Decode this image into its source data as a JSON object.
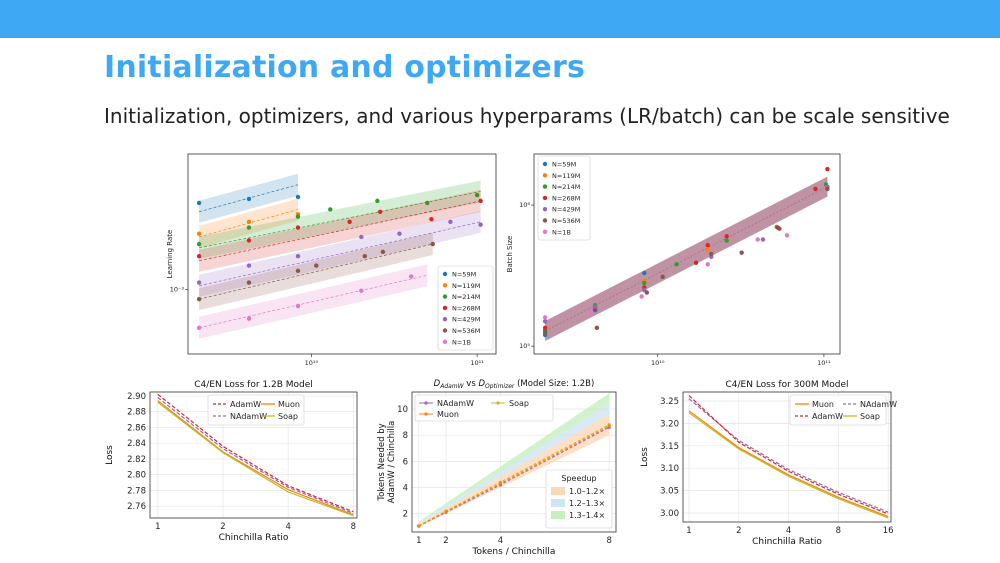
{
  "slide": {
    "title": "Initialization and optimizers",
    "subtitle": "Initialization, optimizers, and various hyperparams (LR/batch) can be scale sensitive",
    "bar_color": "#3ea8f5"
  },
  "chart_data": [
    {
      "type": "scatter",
      "id": "lr",
      "ylabel": "Learning Rate",
      "xscale": "log",
      "yscale": "log",
      "xticks": [
        {
          "v": 10000000000,
          "label": "10¹⁰"
        },
        {
          "v": 100000000000,
          "label": "10¹¹"
        }
      ],
      "yticks": [
        {
          "v": 0.001,
          "label": "10⁻³"
        }
      ],
      "xlim": [
        1800000000,
        130000000000
      ],
      "ylim": [
        0.0004,
        0.0068
      ],
      "legend_placement": "lower-right",
      "series": [
        {
          "name": "N=59M",
          "color": "#1f77b4",
          "x": [
            2100000000.0,
            4200000000.0,
            8300000000.0
          ],
          "y": [
            0.0034,
            0.0036,
            0.0037
          ],
          "fit": [
            [
              2100000000.0,
              0.003
            ],
            [
              8300000000.0,
              0.0044
            ]
          ]
        },
        {
          "name": "N=119M",
          "color": "#ff7f0e",
          "x": [
            2100000000.0,
            4200000000.0,
            8300000000.0
          ],
          "y": [
            0.0022,
            0.0026,
            0.0029
          ],
          "fit": [
            [
              2100000000.0,
              0.0021
            ],
            [
              8300000000.0,
              0.0031
            ]
          ]
        },
        {
          "name": "N=214M",
          "color": "#2ca02c",
          "x": [
            2100000000.0,
            4200000000.0,
            8300000000.0,
            13000000000.0,
            25000000000.0,
            50000000000.0,
            100000000000.0
          ],
          "y": [
            0.0019,
            0.0024,
            0.0028,
            0.0031,
            0.0035,
            0.0034,
            0.0038
          ],
          "fit": [
            [
              2100000000.0,
              0.0018
            ],
            [
              105000000000.0,
              0.004
            ]
          ]
        },
        {
          "name": "N=268M",
          "color": "#d62728",
          "x": [
            2100000000.0,
            4200000000.0,
            8300000000.0,
            17000000000.0,
            26000000000.0,
            53000000000.0,
            105000000000.0
          ],
          "y": [
            0.0016,
            0.002,
            0.0024,
            0.0026,
            0.003,
            0.0027,
            0.0035
          ],
          "fit": [
            [
              2100000000.0,
              0.0015
            ],
            [
              105000000000.0,
              0.0035
            ]
          ]
        },
        {
          "name": "N=429M",
          "color": "#9467bd",
          "x": [
            2100000000.0,
            4200000000.0,
            8300000000.0,
            20000000000.0,
            34000000000.0,
            69000000000.0,
            105000000000.0
          ],
          "y": [
            0.0011,
            0.0014,
            0.0016,
            0.0021,
            0.0022,
            0.0026,
            0.0025
          ],
          "fit": [
            [
              2100000000.0,
              0.00105
            ],
            [
              105000000000.0,
              0.0026
            ]
          ]
        },
        {
          "name": "N=536M",
          "color": "#8c564b",
          "x": [
            2100000000.0,
            4200000000.0,
            8300000000.0,
            10700000000.0,
            21000000000.0,
            27000000000.0,
            54000000000.0
          ],
          "y": [
            0.00087,
            0.0011,
            0.0013,
            0.0014,
            0.0016,
            0.0017,
            0.0019
          ],
          "fit": [
            [
              2100000000.0,
              0.00087
            ],
            [
              54000000000.0,
              0.0019
            ]
          ]
        },
        {
          "name": "N=1B",
          "color": "#e377c2",
          "x": [
            2100000000.0,
            4200000000.0,
            8300000000.0,
            20000000000.0,
            40000000000.0
          ],
          "y": [
            0.00058,
            0.00066,
            0.00079,
            0.00098,
            0.0012
          ],
          "fit": [
            [
              2100000000.0,
              0.00058
            ],
            [
              50000000000.0,
              0.00122
            ]
          ]
        }
      ]
    },
    {
      "type": "scatter",
      "id": "batch",
      "ylabel": "Batch Size",
      "xscale": "log",
      "yscale": "log",
      "xticks": [
        {
          "v": 10000000000,
          "label": "10¹⁰"
        },
        {
          "v": 100000000000,
          "label": "10¹¹"
        }
      ],
      "yticks": [
        {
          "v": 100000,
          "label": "10⁵"
        },
        {
          "v": 1000000,
          "label": "10⁶"
        }
      ],
      "xlim": [
        1800000000,
        125000000000
      ],
      "ylim": [
        88000,
        2300000
      ],
      "legend_placement": "upper-left",
      "series": [
        {
          "name": "N=59M",
          "color": "#1f77b4",
          "x": [
            2100000000.0,
            4200000000.0,
            8300000000.0
          ],
          "y": [
            120000,
            180000,
            330000
          ]
        },
        {
          "name": "N=119M",
          "color": "#ff7f0e",
          "x": [
            2100000000.0,
            4200000000.0,
            8300000000.0,
            20000000000.0
          ],
          "y": [
            125000,
            190000,
            290000,
            480000
          ]
        },
        {
          "name": "N=214M",
          "color": "#2ca02c",
          "x": [
            2100000000.0,
            4200000000.0,
            8300000000.0,
            13000000000.0,
            26000000000.0,
            52000000000.0,
            103000000000.0
          ],
          "y": [
            130000,
            195000,
            280000,
            380000,
            560000,
            700000,
            1400000
          ]
        },
        {
          "name": "N=268M",
          "color": "#d62728",
          "x": [
            2100000000.0,
            4200000000.0,
            8300000000.0,
            17000000000.0,
            20000000000.0,
            26000000000.0,
            53000000000.0,
            89000000000.0,
            105000000000.0
          ],
          "y": [
            135000,
            185000,
            260000,
            390000,
            520000,
            600000,
            690000,
            1300000,
            1800000
          ]
        },
        {
          "name": "N=429M",
          "color": "#9467bd",
          "x": [
            2100000000.0,
            4200000000.0,
            8300000000.0,
            21000000000.0,
            43000000000.0,
            105000000000.0
          ],
          "y": [
            150000,
            190000,
            250000,
            430000,
            570000,
            1350000
          ]
        },
        {
          "name": "N=536M",
          "color": "#8c564b",
          "x": [
            2100000000.0,
            4300000000.0,
            8600000000.0,
            10700000000.0,
            21000000000.0,
            32000000000.0,
            54000000000.0,
            105000000000.0
          ],
          "y": [
            125000,
            135000,
            240000,
            310000,
            450000,
            460000,
            680000,
            1300000
          ]
        },
        {
          "name": "N=1B",
          "color": "#e377c2",
          "x": [
            2100000000.0,
            4000000000.0,
            8000000000.0,
            20000000000.0,
            40000000000.0,
            60000000000.0
          ],
          "y": [
            160000,
            170000,
            225000,
            380000,
            570000,
            610000
          ]
        }
      ]
    },
    {
      "type": "line",
      "id": "c4-1.2b",
      "title": "C4/EN Loss for 1.2B Model",
      "xlabel": "Chinchilla Ratio",
      "ylabel": "Loss",
      "xticks": [
        "1",
        "2",
        "4",
        "8"
      ],
      "ytick_labels": [
        "2.76",
        "2.78",
        "2.80",
        "2.82",
        "2.84",
        "2.86",
        "2.88",
        "2.90"
      ],
      "x": [
        1,
        2,
        4,
        8
      ],
      "ylim": [
        2.745,
        2.905
      ],
      "grid": true,
      "legend_placement": "top-right",
      "series": [
        {
          "name": "AdamW",
          "color": "#d62728",
          "dash": true,
          "values": [
            2.902,
            2.836,
            2.786,
            2.753
          ]
        },
        {
          "name": "NAdamW",
          "color": "#9467bd",
          "dash": true,
          "values": [
            2.898,
            2.833,
            2.784,
            2.751
          ]
        },
        {
          "name": "Muon",
          "color": "#ff7f0e",
          "dash": false,
          "values": [
            2.894,
            2.829,
            2.781,
            2.749
          ]
        },
        {
          "name": "Soap",
          "color": "#bcbd22",
          "dash": false,
          "values": [
            2.892,
            2.828,
            2.778,
            2.748
          ]
        }
      ]
    },
    {
      "type": "line",
      "id": "tokens",
      "title": "D_AdamW vs D_Optimizer (Model Size: 1.2B)",
      "title_parts": {
        "d1": "D",
        "sub1": "AdamW",
        "vs": " vs ",
        "d2": "D",
        "sub2": "Optimizer",
        "rest": " (Model Size: 1.2B)"
      },
      "xlabel": "Tokens / Chinchilla",
      "ylabel_lines": [
        "Tokens Needed by",
        "AdamW / Chinchilla"
      ],
      "xticks": [
        1,
        2,
        4,
        8
      ],
      "yticks": [
        2,
        4,
        6,
        8,
        10
      ],
      "xlim": [
        0.75,
        8.25
      ],
      "ylim": [
        0.6,
        11.3
      ],
      "grid": true,
      "legend_placement": "top",
      "series": [
        {
          "name": "NAdamW",
          "color": "#9467bd",
          "x": [
            1,
            2,
            4,
            8
          ],
          "values": [
            1.05,
            2.1,
            4.2,
            8.6
          ]
        },
        {
          "name": "Soap",
          "color": "#bcbd22",
          "x": [
            1,
            2,
            4,
            8
          ],
          "values": [
            1.08,
            2.2,
            4.4,
            8.8
          ]
        },
        {
          "name": "Muon",
          "color": "#ff7f0e",
          "x": [
            1,
            2,
            4,
            8
          ],
          "values": [
            1.06,
            2.15,
            4.3,
            8.7
          ]
        }
      ],
      "bands": [
        {
          "label": "1.0–1.2×",
          "color": "#fbd7b5",
          "lo": 1.0,
          "hi": 1.2
        },
        {
          "label": "1.2–1.3×",
          "color": "#cfe4f2",
          "lo": 1.2,
          "hi": 1.3
        },
        {
          "label": "1.3–1.4×",
          "color": "#c6efc0",
          "lo": 1.3,
          "hi": 1.4
        }
      ],
      "band_legend_title": "Speedup"
    },
    {
      "type": "line",
      "id": "c4-300m",
      "title": "C4/EN Loss for 300M Model",
      "xlabel": "Chinchilla Ratio",
      "ylabel": "Loss",
      "xticks": [
        "1",
        "2",
        "4",
        "8",
        "16"
      ],
      "ytick_labels": [
        "3.00",
        "3.05",
        "3.10",
        "3.15",
        "3.20",
        "3.25"
      ],
      "x": [
        1,
        2,
        4,
        8,
        16
      ],
      "ylim": [
        2.98,
        3.27
      ],
      "grid": true,
      "legend_placement": "top-right",
      "series": [
        {
          "name": "Muon",
          "color": "#ff7f0e",
          "dash": false,
          "values": [
            3.228,
            3.146,
            3.085,
            3.035,
            2.992
          ]
        },
        {
          "name": "NAdamW",
          "color": "#9467bd",
          "dash": true,
          "values": [
            3.255,
            3.162,
            3.097,
            3.046,
            3.002
          ]
        },
        {
          "name": "AdamW",
          "color": "#d62728",
          "dash": true,
          "values": [
            3.262,
            3.158,
            3.093,
            3.042,
            2.998
          ]
        },
        {
          "name": "Soap",
          "color": "#bcbd22",
          "dash": false,
          "values": [
            3.224,
            3.143,
            3.082,
            3.032,
            2.989
          ]
        }
      ]
    }
  ]
}
